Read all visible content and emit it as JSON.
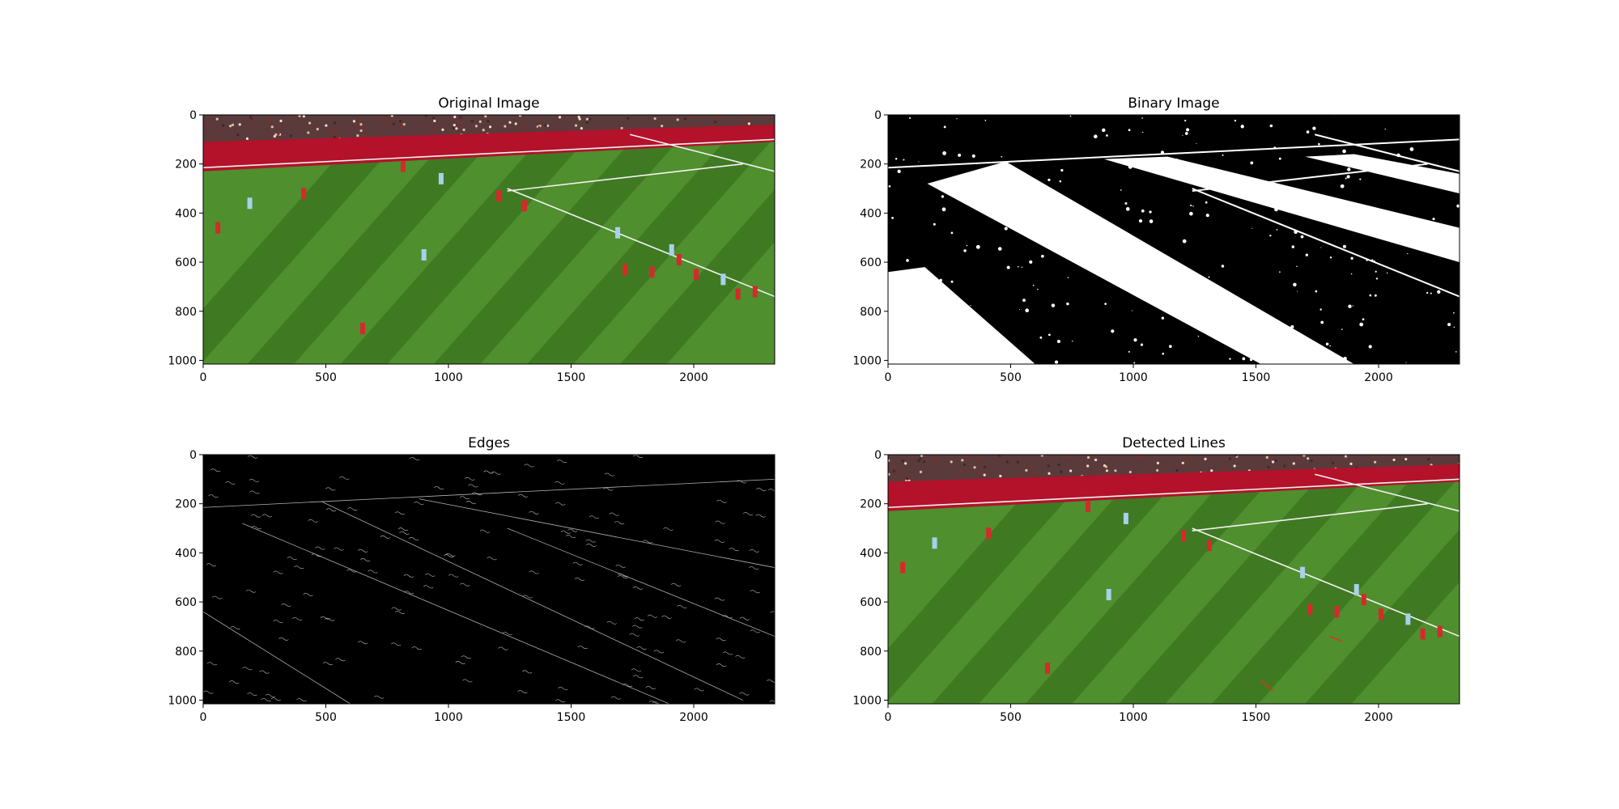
{
  "chart_data": [
    {
      "type": "image",
      "title": "Original Image",
      "xlim": [
        0,
        2330
      ],
      "ylim": [
        1015,
        0
      ],
      "xticks": [
        0,
        500,
        1000,
        1500,
        2000
      ],
      "yticks": [
        0,
        200,
        400,
        600,
        800,
        1000
      ],
      "grid": false,
      "legend": "none",
      "render": "photo",
      "colors": {
        "pitch_light": "#4f8f2e",
        "pitch_dark": "#3f7a22",
        "board": "#b3122a",
        "crowd": "#5a3a3a",
        "line": "#f2f2f2"
      }
    },
    {
      "type": "image",
      "title": "Binary Image",
      "xlim": [
        0,
        2330
      ],
      "ylim": [
        1015,
        0
      ],
      "xticks": [
        0,
        500,
        1000,
        1500,
        2000
      ],
      "yticks": [
        0,
        200,
        400,
        600,
        800,
        1000
      ],
      "grid": false,
      "legend": "none",
      "render": "binary",
      "colors": {
        "fg": "#ffffff",
        "bg": "#000000"
      }
    },
    {
      "type": "image",
      "title": "Edges",
      "xlim": [
        0,
        2330
      ],
      "ylim": [
        1015,
        0
      ],
      "xticks": [
        0,
        500,
        1000,
        1500,
        2000
      ],
      "yticks": [
        0,
        200,
        400,
        600,
        800,
        1000
      ],
      "grid": false,
      "legend": "none",
      "render": "edges",
      "colors": {
        "fg": "#b0b0b0",
        "bg": "#000000"
      }
    },
    {
      "type": "image",
      "title": "Detected Lines",
      "xlim": [
        0,
        2330
      ],
      "ylim": [
        1015,
        0
      ],
      "xticks": [
        0,
        500,
        1000,
        1500,
        2000
      ],
      "yticks": [
        0,
        200,
        400,
        600,
        800,
        1000
      ],
      "grid": false,
      "legend": "none",
      "render": "photo-lines",
      "colors": {
        "pitch_light": "#4f8f2e",
        "pitch_dark": "#3f7a22",
        "board": "#b3122a",
        "crowd": "#5a3a3a",
        "line": "#f2f2f2",
        "detected": "#e0301e"
      }
    }
  ]
}
